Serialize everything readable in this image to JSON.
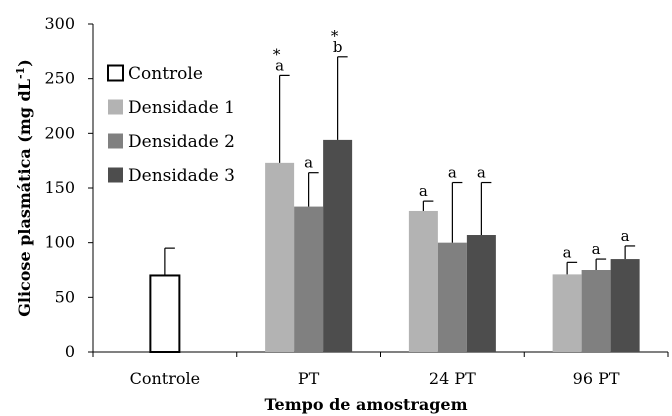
{
  "chart_data": {
    "type": "bar",
    "title": "",
    "xlabel": "Tempo de amostragem",
    "ylabel": "Glicose plasmática (mg dL",
    "ylabel_sup": "-1",
    "ylabel_close": ")",
    "ylim": [
      0,
      300
    ],
    "yticks": [
      0,
      50,
      100,
      150,
      200,
      250,
      300
    ],
    "yticks_labels": [
      "0",
      "50",
      "100",
      "150",
      "200",
      "250",
      "300"
    ],
    "categories": [
      "Controle",
      "PT",
      "24 PT",
      "96 PT"
    ],
    "legend_position": "top-left",
    "grid": false,
    "series": [
      {
        "name": "Controle",
        "color": "#ffffff",
        "values": [
          70,
          null,
          null,
          null
        ],
        "errors": [
          25,
          null,
          null,
          null
        ],
        "labels": [
          "",
          "",
          "",
          ""
        ]
      },
      {
        "name": "Densidade 1",
        "color": "#b3b3b3",
        "values": [
          null,
          173,
          129,
          71
        ],
        "errors": [
          null,
          80,
          9,
          11
        ],
        "labels": [
          "",
          "*a",
          "a",
          "a"
        ]
      },
      {
        "name": "Densidade 2",
        "color": "#808080",
        "values": [
          null,
          133,
          100,
          75
        ],
        "errors": [
          null,
          31,
          55,
          10
        ],
        "labels": [
          "",
          "a",
          "a",
          "a"
        ]
      },
      {
        "name": "Densidade 3",
        "color": "#4d4d4d",
        "values": [
          null,
          194,
          107,
          85
        ],
        "errors": [
          null,
          76,
          48,
          12
        ],
        "labels": [
          "",
          "*b",
          "a",
          "a"
        ]
      }
    ]
  }
}
